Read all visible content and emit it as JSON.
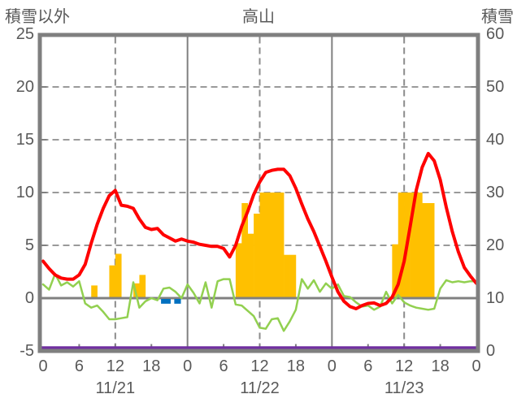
{
  "titles": {
    "left_axis": "積雪以外",
    "center": "高山",
    "right_axis": "積雪"
  },
  "chart_data": {
    "type": "line+bar weather composite",
    "title": "高山",
    "x": {
      "unit": "hour",
      "start": 0,
      "end": 72,
      "hour_ticks": [
        {
          "hour": 0,
          "label": "0"
        },
        {
          "hour": 6,
          "label": "6"
        },
        {
          "hour": 12,
          "label": "12"
        },
        {
          "hour": 18,
          "label": "18"
        },
        {
          "hour": 24,
          "label": "0"
        },
        {
          "hour": 30,
          "label": "6"
        },
        {
          "hour": 36,
          "label": "12"
        },
        {
          "hour": 42,
          "label": "18"
        },
        {
          "hour": 48,
          "label": "0"
        },
        {
          "hour": 54,
          "label": "6"
        },
        {
          "hour": 60,
          "label": "12"
        },
        {
          "hour": 66,
          "label": "18"
        },
        {
          "hour": 72,
          "label": "0"
        }
      ],
      "date_labels": [
        {
          "hour": 12,
          "label": "11/21"
        },
        {
          "hour": 36,
          "label": "11/22"
        },
        {
          "hour": 60,
          "label": "11/23"
        }
      ]
    },
    "left_axis": {
      "title": "積雪以外",
      "min": -5,
      "max": 25,
      "step": 5,
      "tick_labels": [
        {
          "value": 25,
          "label": "25"
        },
        {
          "value": 20,
          "label": "20"
        },
        {
          "value": 15,
          "label": "15"
        },
        {
          "value": 10,
          "label": "10"
        },
        {
          "value": 5,
          "label": "5"
        },
        {
          "value": 0,
          "label": "0"
        },
        {
          "value": -5,
          "label": "-5"
        }
      ]
    },
    "right_axis": {
      "title": "積雪",
      "min": 0,
      "max": 60,
      "step": 10,
      "tick_labels": [
        {
          "value": 60,
          "label": "60"
        },
        {
          "value": 50,
          "label": "50"
        },
        {
          "value": 40,
          "label": "40"
        },
        {
          "value": 30,
          "label": "30"
        },
        {
          "value": 20,
          "label": "20"
        },
        {
          "value": 10,
          "label": "10"
        },
        {
          "value": 0,
          "label": "0"
        }
      ]
    },
    "gridlines": {
      "horizontal_dashed_values": [
        20,
        15,
        10,
        5
      ],
      "zero_line_value": 0,
      "vertical_solid_hours": [
        24,
        48
      ],
      "vertical_dashed_hours": [
        12,
        36,
        60
      ],
      "left_tick_values": [
        20,
        15,
        10,
        5
      ],
      "right_tick_values": [
        50,
        40,
        30,
        20,
        10
      ],
      "bottom_tick_hours": [
        6,
        12,
        18,
        30,
        36,
        42,
        54,
        60,
        66
      ]
    },
    "series": [
      {
        "id": "orange-bars",
        "type": "bar",
        "axis": "left",
        "color": "#FFC000",
        "bars": [
          {
            "hour": 8,
            "value": 1.2
          },
          {
            "hour": 11,
            "value": 3.1
          },
          {
            "hour": 12,
            "value": 4.2
          },
          {
            "hour": 15,
            "value": 1.4
          },
          {
            "hour": 16,
            "value": 2.2
          },
          {
            "hour": 32,
            "value": 5.2
          },
          {
            "hour": 33,
            "value": 9.0
          },
          {
            "hour": 34,
            "value": 6.1
          },
          {
            "hour": 35,
            "value": 8.0
          },
          {
            "hour": 36,
            "value": 10
          },
          {
            "hour": 37,
            "value": 10
          },
          {
            "hour": 38,
            "value": 10
          },
          {
            "hour": 39,
            "value": 10
          },
          {
            "hour": 40,
            "value": 4.1
          },
          {
            "hour": 41,
            "value": 4.1
          },
          {
            "hour": 58,
            "value": 5.1
          },
          {
            "hour": 59,
            "value": 10
          },
          {
            "hour": 60,
            "value": 10
          },
          {
            "hour": 61,
            "value": 10
          },
          {
            "hour": 62,
            "value": 10
          },
          {
            "hour": 63,
            "value": 9.0
          },
          {
            "hour": 64,
            "value": 9.0
          }
        ]
      },
      {
        "id": "blue-bars",
        "type": "bar",
        "axis": "left",
        "color": "#0070C0",
        "bars": [
          {
            "hour": 19.6,
            "width_hours": 1.6,
            "value": -0.45
          },
          {
            "hour": 21.8,
            "width_hours": 1.1,
            "value": -0.45
          }
        ]
      },
      {
        "id": "green-line",
        "type": "line",
        "axis": "left",
        "color": "#92D050",
        "stroke_width": 2.5,
        "x_start": 0,
        "x_step": 1,
        "values": [
          1.3,
          0.8,
          2.3,
          1.2,
          1.5,
          1.1,
          1.6,
          -0.5,
          -0.9,
          -0.7,
          -1.3,
          -2.0,
          -2.0,
          -1.9,
          -1.8,
          1.5,
          -0.9,
          -0.3,
          0.0,
          -0.2,
          0.9,
          1.0,
          0.6,
          0.0,
          1.3,
          0.5,
          -0.5,
          1.5,
          -0.9,
          1.6,
          1.8,
          1.8,
          -0.6,
          -0.7,
          -1.2,
          -1.7,
          -2.8,
          -2.9,
          -2.0,
          -1.9,
          -3.1,
          -2.2,
          -1.1,
          1.8,
          0.9,
          1.7,
          0.6,
          1.4,
          0.9,
          1.3,
          0.2,
          0.1,
          -0.4,
          -0.8,
          -0.7,
          -1.1,
          -0.8,
          0.6,
          -0.5,
          0.3,
          -0.4,
          -0.7,
          -0.9,
          -1.0,
          -1.1,
          -1.0,
          0.9,
          1.7,
          1.5,
          1.6,
          1.5,
          1.6,
          1.6
        ]
      },
      {
        "id": "red-line",
        "type": "line",
        "axis": "left",
        "color": "#FF0000",
        "stroke_width": 4,
        "x_start": 0,
        "x_step": 1,
        "values": [
          3.5,
          2.8,
          2.2,
          1.9,
          1.8,
          1.8,
          2.2,
          3.2,
          5.2,
          7.0,
          8.5,
          9.7,
          10.2,
          8.8,
          8.7,
          8.5,
          7.5,
          6.7,
          6.5,
          6.6,
          6.0,
          5.7,
          5.4,
          5.6,
          5.4,
          5.3,
          5.1,
          5.0,
          4.9,
          4.9,
          4.7,
          3.9,
          5.0,
          6.8,
          8.2,
          9.8,
          11.0,
          11.9,
          12.1,
          12.2,
          12.2,
          11.6,
          10.4,
          8.9,
          7.5,
          6.3,
          4.9,
          3.5,
          2.0,
          0.6,
          -0.3,
          -0.8,
          -1.0,
          -0.7,
          -0.5,
          -0.45,
          -0.7,
          -0.5,
          0.1,
          1.3,
          3.5,
          6.8,
          10.2,
          12.4,
          13.7,
          13.0,
          11.2,
          8.6,
          6.3,
          4.4,
          2.9,
          2.1,
          1.4
        ]
      },
      {
        "id": "purple-line",
        "type": "constant-line",
        "axis": "right",
        "color": "#7030A0",
        "stroke_width": 3.5,
        "value": 0
      }
    ],
    "style": {
      "border_color": "#7F7F7F",
      "grid_color": "#8C8C8C",
      "zero_line_color": "#808080",
      "text_color": "#595959",
      "background": "#FFFFFF"
    }
  }
}
